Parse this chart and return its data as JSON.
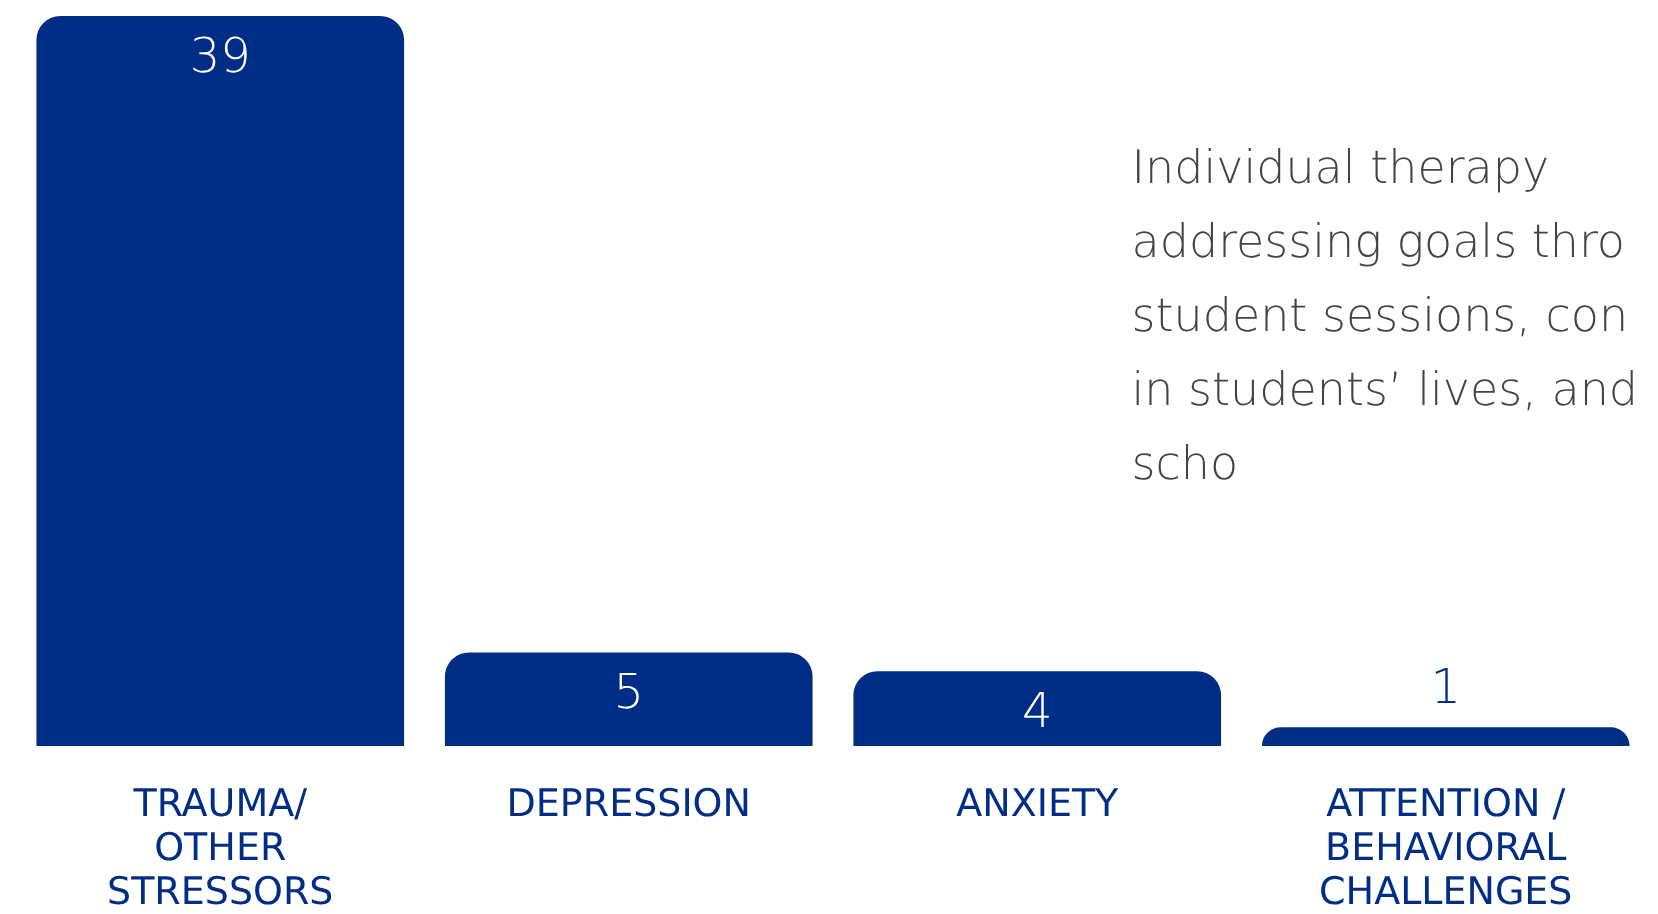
{
  "chart_data": {
    "type": "bar",
    "categories": [
      "TRAUMA/\nOTHER\nSTRESSORS",
      "DEPRESSION",
      "ANXIETY",
      "ATTENTION /\nBEHAVIORAL\nCHALLENGES"
    ],
    "values": [
      39,
      5,
      4,
      1
    ],
    "color": "#002d86",
    "data_labels": true,
    "annotations": [
      "Individual therapy\naddressing goals thro\nstudent sessions, con\nin students’ lives, and\nscho"
    ]
  }
}
